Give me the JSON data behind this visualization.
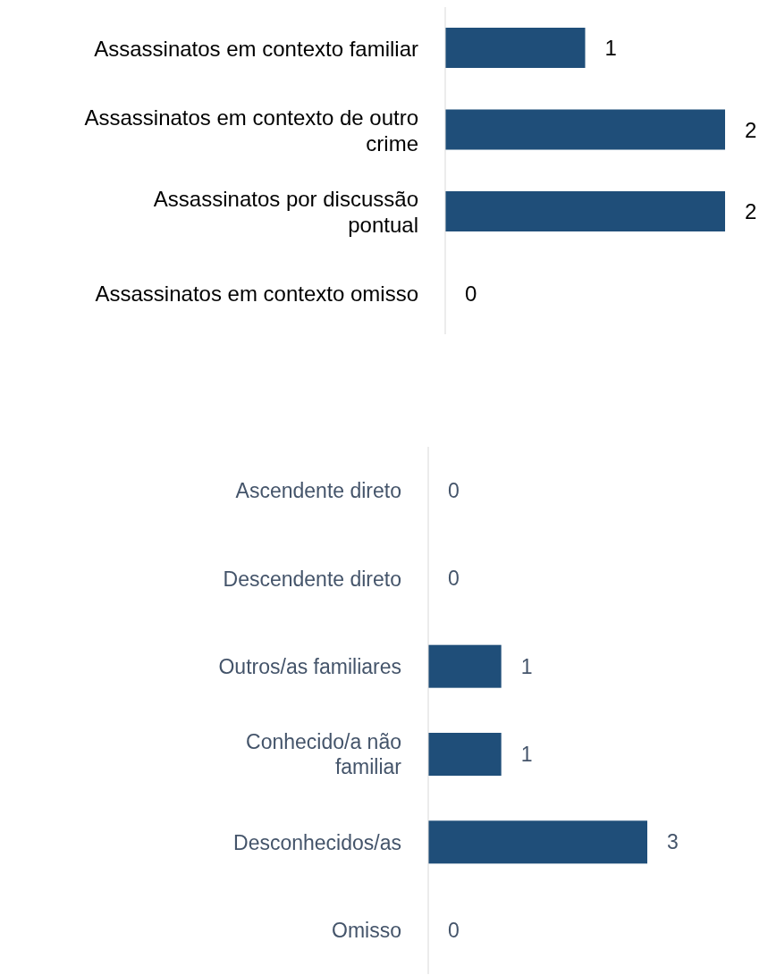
{
  "chart_data": [
    {
      "type": "bar",
      "orientation": "horizontal",
      "categories": [
        "Assassinatos em contexto familiar",
        "Assassinatos em contexto de outro crime",
        "Assassinatos por discussão pontual",
        "Assassinatos em contexto omisso"
      ],
      "values": [
        1,
        2,
        2,
        0
      ],
      "color": "#1f4e79",
      "data_labels": true
    },
    {
      "type": "bar",
      "orientation": "horizontal",
      "categories": [
        "Ascendente direto",
        "Descendente direto",
        "Outros/as familiares",
        "Conhecido/a não familiar",
        "Desconhecidos/as",
        "Omisso"
      ],
      "values": [
        0,
        0,
        1,
        1,
        3,
        0
      ],
      "color": "#1f4e79",
      "data_labels": true
    }
  ]
}
